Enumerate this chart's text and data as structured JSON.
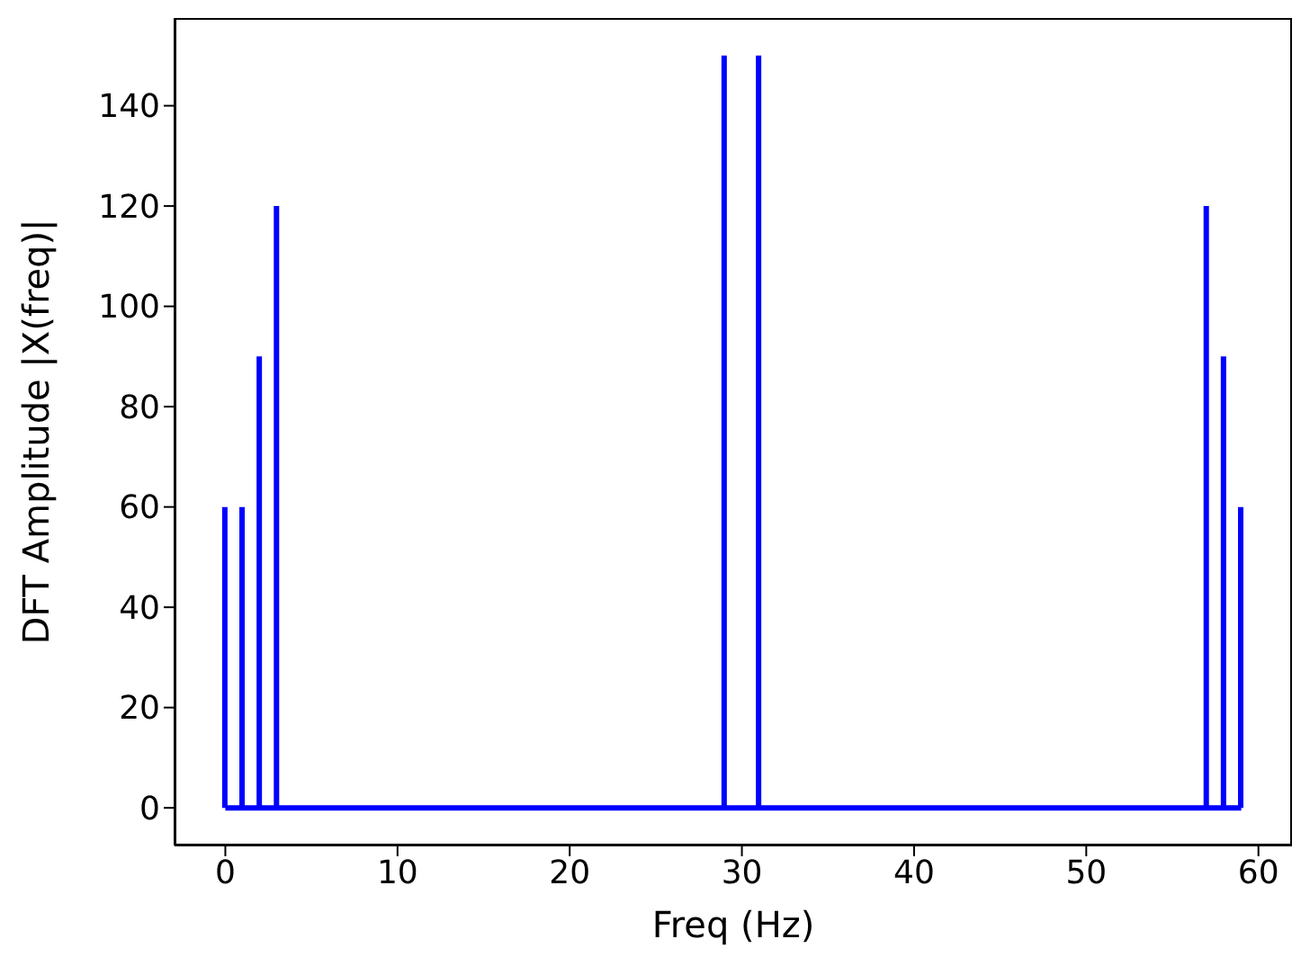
{
  "chart_data": {
    "type": "bar",
    "xlabel": "Freq (Hz)",
    "ylabel": "DFT Amplitude |X(freq)|",
    "x": [
      0,
      1,
      2,
      3,
      4,
      5,
      6,
      7,
      8,
      9,
      10,
      11,
      12,
      13,
      14,
      15,
      16,
      17,
      18,
      19,
      20,
      21,
      22,
      23,
      24,
      25,
      26,
      27,
      28,
      29,
      30,
      31,
      32,
      33,
      34,
      35,
      36,
      37,
      38,
      39,
      40,
      41,
      42,
      43,
      44,
      45,
      46,
      47,
      48,
      49,
      50,
      51,
      52,
      53,
      54,
      55,
      56,
      57,
      58,
      59
    ],
    "series": [
      {
        "color": "#0000ff",
        "values": [
          60,
          60,
          90,
          120,
          0,
          0,
          0,
          0,
          0,
          0,
          0,
          0,
          0,
          0,
          0,
          0,
          0,
          0,
          0,
          0,
          0,
          0,
          0,
          0,
          0,
          0,
          0,
          0,
          0,
          150,
          0,
          150,
          0,
          0,
          0,
          0,
          0,
          0,
          0,
          0,
          0,
          0,
          0,
          0,
          0,
          0,
          0,
          0,
          0,
          0,
          0,
          0,
          0,
          0,
          0,
          0,
          0,
          120,
          90,
          60
        ]
      }
    ],
    "ref_lines": [
      {
        "axis": "y",
        "value": 0,
        "color": "#0000ff"
      }
    ],
    "xlim": [
      -2.95,
      61.95
    ],
    "xticks": [
      0,
      10,
      20,
      30,
      40,
      50,
      60
    ],
    "ylim": [
      -7.5,
      157.5
    ],
    "yticks": [
      0,
      20,
      40,
      60,
      80,
      100,
      120,
      140
    ]
  }
}
